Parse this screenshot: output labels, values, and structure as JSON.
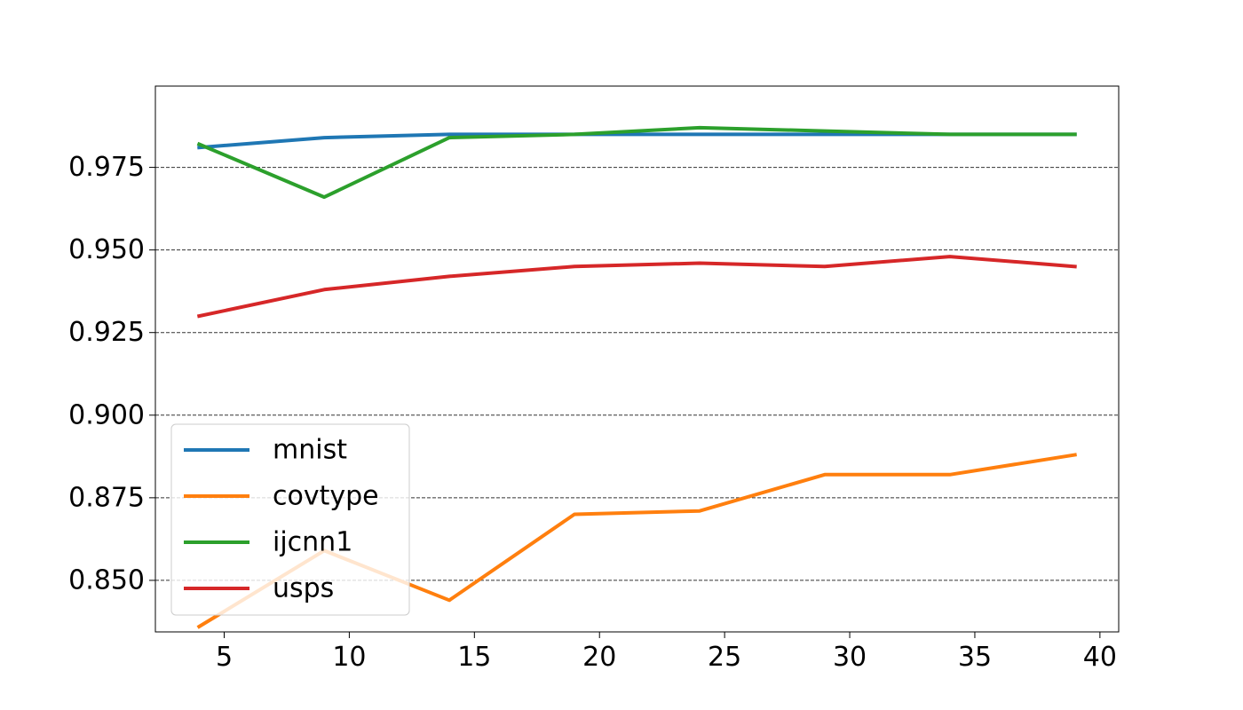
{
  "chart_data": {
    "type": "line",
    "title": "",
    "xlabel": "",
    "ylabel": "",
    "xlim": [
      2.25,
      40.75
    ],
    "ylim": [
      0.8344,
      0.9996
    ],
    "x_ticks": [
      {
        "value": 5,
        "label": "5"
      },
      {
        "value": 10,
        "label": "10"
      },
      {
        "value": 15,
        "label": "15"
      },
      {
        "value": 20,
        "label": "20"
      },
      {
        "value": 25,
        "label": "25"
      },
      {
        "value": 30,
        "label": "30"
      },
      {
        "value": 35,
        "label": "35"
      },
      {
        "value": 40,
        "label": "40"
      }
    ],
    "y_ticks": [
      {
        "value": 0.85,
        "label": "0.850"
      },
      {
        "value": 0.875,
        "label": "0.875"
      },
      {
        "value": 0.9,
        "label": "0.900"
      },
      {
        "value": 0.925,
        "label": "0.925"
      },
      {
        "value": 0.95,
        "label": "0.950"
      },
      {
        "value": 0.975,
        "label": "0.975"
      }
    ],
    "grid": "horizontal dashed",
    "legend_position": "lower-left",
    "x": [
      4,
      9,
      14,
      19,
      24,
      29,
      34,
      39
    ],
    "series": [
      {
        "name": "mnist",
        "color": "#1f77b4",
        "values": [
          0.981,
          0.984,
          0.985,
          0.985,
          0.985,
          0.985,
          0.985,
          0.985
        ]
      },
      {
        "name": "covtype",
        "color": "#ff7f0e",
        "values": [
          0.836,
          0.859,
          0.844,
          0.87,
          0.871,
          0.882,
          0.882,
          0.888
        ]
      },
      {
        "name": "ijcnn1",
        "color": "#2ca02c",
        "values": [
          0.982,
          0.966,
          0.984,
          0.985,
          0.987,
          0.986,
          0.985,
          0.985
        ]
      },
      {
        "name": "usps",
        "color": "#d62728",
        "values": [
          0.93,
          0.938,
          0.942,
          0.945,
          0.946,
          0.945,
          0.948,
          0.945
        ]
      }
    ]
  }
}
